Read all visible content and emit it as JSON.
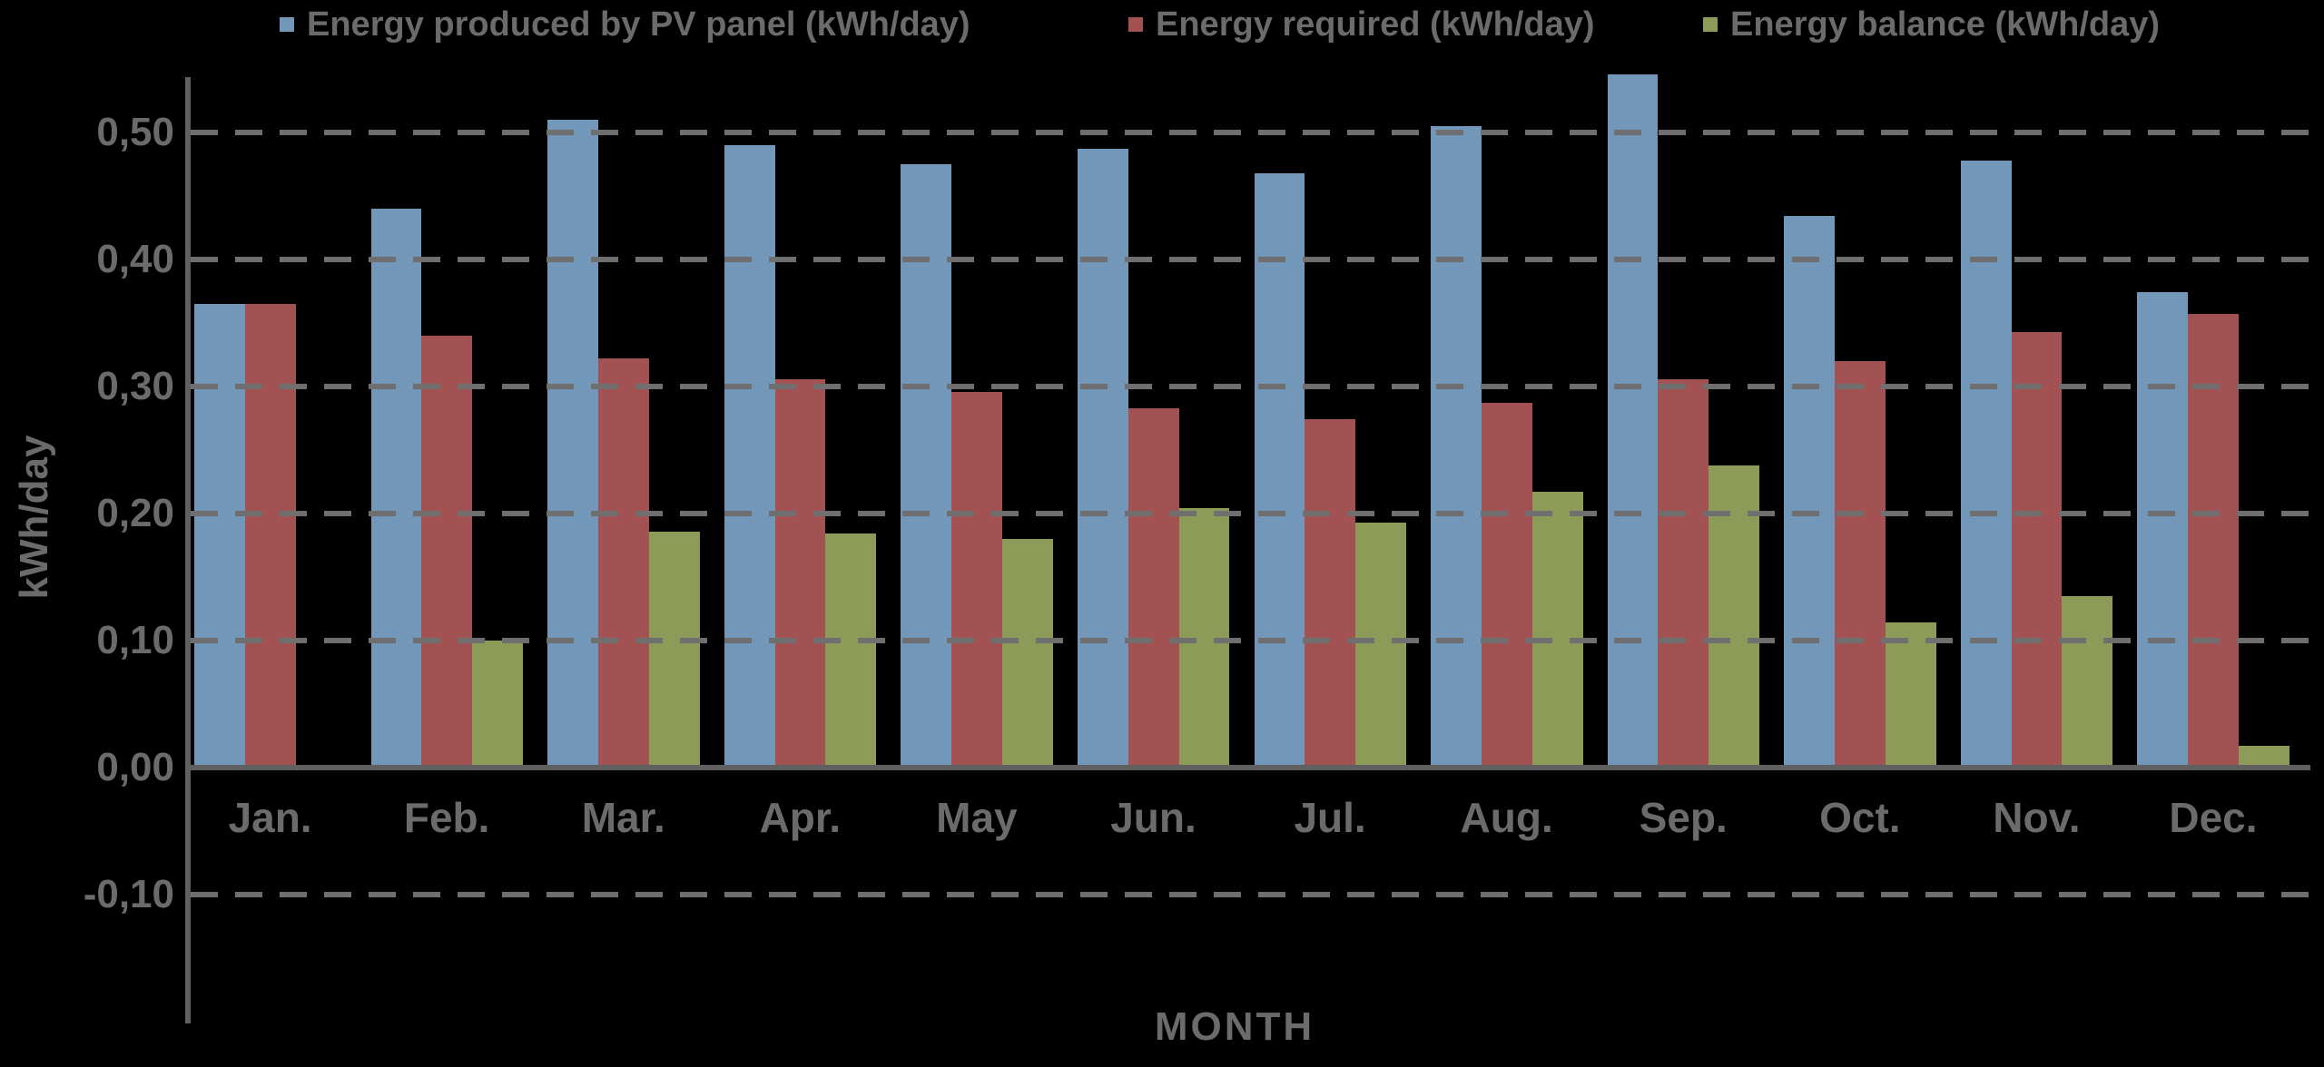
{
  "chart_data": {
    "type": "bar",
    "title": "",
    "xlabel": "MONTH",
    "ylabel": "kWh/day",
    "categories": [
      "Jan.",
      "Feb.",
      "Mar.",
      "Apr.",
      "May",
      "Jun.",
      "Jul.",
      "Aug.",
      "Sep.",
      "Oct.",
      "Nov.",
      "Dec."
    ],
    "series": [
      {
        "name": "Energy produced by PV panel (kWh/day)",
        "color": "#7297B9",
        "values": [
          0.365,
          0.44,
          0.51,
          0.49,
          0.475,
          0.487,
          0.468,
          0.505,
          0.546,
          0.434,
          0.478,
          0.374
        ]
      },
      {
        "name": "Energy required (kWh/day)",
        "color": "#A35254",
        "values": [
          0.365,
          0.34,
          0.322,
          0.306,
          0.296,
          0.283,
          0.274,
          0.287,
          0.306,
          0.32,
          0.343,
          0.357
        ]
      },
      {
        "name": "Energy balance (kWh/day)",
        "color": "#8C9C58",
        "values": [
          0.0,
          0.1,
          0.186,
          0.184,
          0.18,
          0.204,
          0.193,
          0.217,
          0.238,
          0.114,
          0.135,
          0.017
        ]
      }
    ],
    "yticks": [
      "0,50",
      "0,40",
      "0,30",
      "0,20",
      "0,10",
      "0,00",
      "-0,10"
    ],
    "ytick_values": [
      0.5,
      0.4,
      0.3,
      0.2,
      0.1,
      0.0,
      -0.1
    ],
    "ylim": [
      -0.2,
      0.56
    ],
    "grid": "horizontal-dashed",
    "gridline_values": [
      0.5,
      0.4,
      0.3,
      0.2,
      0.1,
      -0.1
    ],
    "legend_position": "top",
    "decimal_separator": ","
  },
  "colors": {
    "background": "#000000",
    "axis_line": "#606060",
    "gridline": "#6F6F6F",
    "text": "#6B6B6B",
    "series_produced": "#7297B9",
    "series_required": "#A35254",
    "series_balance": "#8C9C58"
  }
}
